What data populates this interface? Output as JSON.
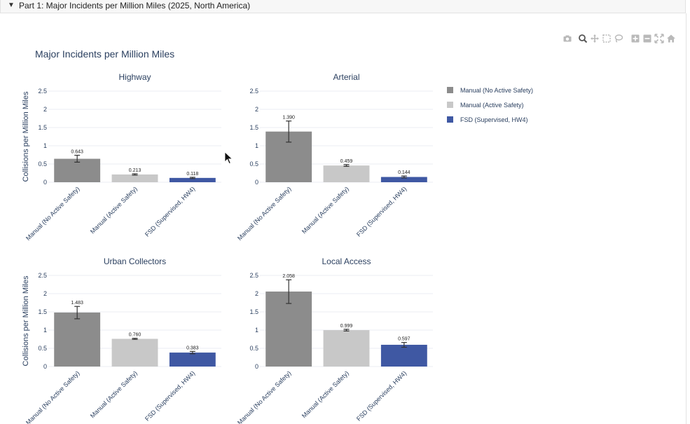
{
  "section": {
    "summary": "Part 1: Major Incidents per Million Miles (2025, North America)"
  },
  "modebar": [
    "camera-icon",
    "zoom-icon",
    "pan-icon",
    "box-select-icon",
    "lasso-icon",
    "zoom-in-icon",
    "zoom-out-icon",
    "autoscale-icon",
    "reset-axes-icon"
  ],
  "colors": {
    "manual_no_safety": "#8c8c8c",
    "manual_safety": "#c8c8c8",
    "fsd": "#3f58a3",
    "title": "#2a3f5f",
    "grid": "#ebeef3"
  },
  "chart_data": {
    "type": "bar",
    "title": "Major Incidents per Million Miles",
    "legend": {
      "placement": "top-right",
      "entries": [
        "Manual (No Active Safety)",
        "Manual (Active Safety)",
        "FSD (Supervised, HW4)"
      ]
    },
    "categories": [
      "Manual (No Active Safety)",
      "Manual (Active Safety)",
      "FSD (Supervised, HW4)"
    ],
    "ylabel": "Collisions per Million Miles",
    "ylim": [
      0,
      2.5
    ],
    "yticks": [
      0,
      0.5,
      1,
      1.5,
      2,
      2.5
    ],
    "ytick_labels": [
      "0",
      "0.5",
      "1",
      "1.5",
      "2",
      "2.5"
    ],
    "grid": true,
    "panels": [
      {
        "title": "Highway",
        "values": [
          0.643,
          0.213,
          0.118
        ],
        "labels": [
          "0.643",
          "0.213",
          "0.118"
        ],
        "error": [
          [
            0.55,
            0.74
          ],
          [
            0.195,
            0.231
          ],
          [
            0.1,
            0.136
          ]
        ]
      },
      {
        "title": "Arterial",
        "values": [
          1.39,
          0.459,
          0.144
        ],
        "labels": [
          "1.390",
          "0.459",
          "0.144"
        ],
        "error": [
          [
            1.1,
            1.68
          ],
          [
            0.435,
            0.483
          ],
          [
            0.12,
            0.17
          ]
        ]
      },
      {
        "title": "Urban Collectors",
        "values": [
          1.483,
          0.76,
          0.383
        ],
        "labels": [
          "1.483",
          "0.760",
          "0.383"
        ],
        "error": [
          [
            1.31,
            1.65
          ],
          [
            0.745,
            0.775
          ],
          [
            0.35,
            0.415
          ]
        ]
      },
      {
        "title": "Local Access",
        "values": [
          2.058,
          0.999,
          0.597
        ],
        "labels": [
          "2.058",
          "0.999",
          "0.597"
        ],
        "error": [
          [
            1.73,
            2.38
          ],
          [
            0.975,
            1.023
          ],
          [
            0.53,
            0.66
          ]
        ]
      }
    ]
  }
}
